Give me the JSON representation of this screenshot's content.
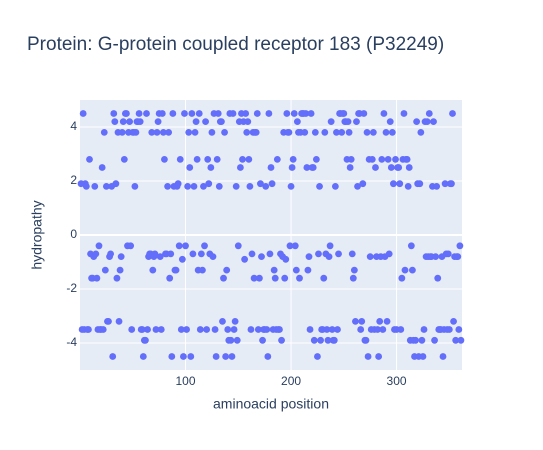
{
  "chart_data": {
    "type": "scatter",
    "title": "Protein: G-protein coupled receptor 183 (P32249)",
    "x_label": "aminoacid position",
    "y_label": "hydropathy",
    "color": "#636efa",
    "grid": true,
    "xlim": [
      0,
      362
    ],
    "ylim": [
      -5,
      5
    ],
    "xticks": [
      100,
      200,
      300
    ],
    "yticks": [
      -4,
      -2,
      0,
      2,
      4
    ],
    "x": [
      1,
      2,
      3,
      4,
      5,
      6,
      7,
      8,
      9,
      10,
      11,
      12,
      13,
      14,
      15,
      16,
      17,
      18,
      19,
      20,
      21,
      22,
      23,
      24,
      25,
      26,
      27,
      28,
      29,
      30,
      31,
      32,
      33,
      34,
      35,
      36,
      37,
      38,
      39,
      40,
      41,
      42,
      43,
      44,
      45,
      46,
      47,
      48,
      49,
      50,
      51,
      52,
      53,
      54,
      55,
      56,
      57,
      58,
      59,
      60,
      61,
      62,
      63,
      64,
      65,
      66,
      67,
      68,
      69,
      70,
      71,
      72,
      73,
      74,
      75,
      76,
      77,
      78,
      79,
      80,
      81,
      82,
      83,
      84,
      85,
      86,
      87,
      88,
      89,
      90,
      91,
      92,
      93,
      94,
      95,
      96,
      97,
      98,
      99,
      100,
      101,
      102,
      103,
      104,
      105,
      106,
      107,
      108,
      109,
      110,
      111,
      112,
      113,
      114,
      115,
      116,
      117,
      118,
      119,
      120,
      121,
      122,
      123,
      124,
      125,
      126,
      127,
      128,
      129,
      130,
      131,
      132,
      133,
      134,
      135,
      136,
      137,
      138,
      139,
      140,
      141,
      142,
      143,
      144,
      145,
      146,
      147,
      148,
      149,
      150,
      151,
      152,
      153,
      154,
      155,
      156,
      157,
      158,
      159,
      160,
      161,
      162,
      163,
      164,
      165,
      166,
      167,
      168,
      169,
      170,
      171,
      172,
      173,
      174,
      175,
      176,
      177,
      178,
      179,
      180,
      181,
      182,
      183,
      184,
      185,
      186,
      187,
      188,
      189,
      190,
      191,
      192,
      193,
      194,
      195,
      196,
      197,
      198,
      199,
      200,
      201,
      202,
      203,
      204,
      205,
      206,
      207,
      208,
      209,
      210,
      211,
      212,
      213,
      214,
      215,
      216,
      217,
      218,
      219,
      220,
      221,
      222,
      223,
      224,
      225,
      226,
      227,
      228,
      229,
      230,
      231,
      232,
      233,
      234,
      235,
      236,
      237,
      238,
      239,
      240,
      241,
      242,
      243,
      244,
      245,
      246,
      247,
      248,
      249,
      250,
      251,
      252,
      253,
      254,
      255,
      256,
      257,
      258,
      259,
      260,
      261,
      262,
      263,
      264,
      265,
      266,
      267,
      268,
      269,
      270,
      271,
      272,
      273,
      274,
      275,
      276,
      277,
      278,
      279,
      280,
      281,
      282,
      283,
      284,
      285,
      286,
      287,
      288,
      289,
      290,
      291,
      292,
      293,
      294,
      295,
      296,
      297,
      298,
      299,
      300,
      301,
      302,
      303,
      304,
      305,
      306,
      307,
      308,
      309,
      310,
      311,
      312,
      313,
      314,
      315,
      316,
      317,
      318,
      319,
      320,
      321,
      322,
      323,
      324,
      325,
      326,
      327,
      328,
      329,
      330,
      331,
      332,
      333,
      334,
      335,
      336,
      337,
      338,
      339,
      340,
      341,
      342,
      343,
      344,
      345,
      346,
      347,
      348,
      349,
      350,
      351,
      352,
      353,
      354,
      355,
      356,
      357,
      358,
      359,
      360,
      361
    ],
    "values": [
      1.9,
      -3.5,
      4.5,
      -3.5,
      1.9,
      1.8,
      -3.5,
      -3.5,
      2.8,
      -0.7,
      -1.6,
      -1.6,
      -0.8,
      1.8,
      -0.7,
      -1.6,
      -3.5,
      -0.4,
      -3.5,
      -3.5,
      2.5,
      -3.5,
      3.8,
      -1.3,
      1.8,
      -3.2,
      -3.2,
      -0.8,
      -0.7,
      1.8,
      -4.5,
      4.5,
      4.2,
      1.9,
      -1.6,
      3.8,
      -3.2,
      -1.3,
      -0.8,
      3.8,
      4.2,
      2.8,
      4.5,
      4.5,
      -0.4,
      3.8,
      4.2,
      -0.4,
      -3.5,
      3.8,
      3.8,
      1.8,
      3.8,
      4.2,
      4.2,
      4.5,
      4.2,
      -3.5,
      -3.5,
      -4.5,
      -3.9,
      -3.9,
      4.5,
      -3.5,
      -0.8,
      -0.7,
      -0.7,
      3.8,
      -1.3,
      -0.8,
      -0.7,
      -3.5,
      3.8,
      4.2,
      4.5,
      -0.8,
      -3.5,
      4.5,
      3.8,
      2.8,
      -0.7,
      -0.7,
      1.8,
      3.8,
      -1.6,
      -0.7,
      -4.5,
      4.5,
      1.8,
      -1.3,
      -1.3,
      1.8,
      1.9,
      -0.4,
      2.8,
      -3.5,
      -0.9,
      -4.5,
      4.5,
      -0.4,
      -3.5,
      1.8,
      3.8,
      2.5,
      -4.5,
      4.5,
      -0.7,
      1.8,
      3.8,
      4.2,
      2.8,
      -1.3,
      4.5,
      -3.5,
      -0.7,
      -1.3,
      1.8,
      -0.4,
      4.2,
      -3.5,
      2.8,
      1.9,
      -0.7,
      2.5,
      3.8,
      -0.8,
      4.5,
      -3.5,
      -4.5,
      2.8,
      4.5,
      1.8,
      4.2,
      4.2,
      -3.2,
      -1.6,
      3.8,
      -4.5,
      -1.3,
      -3.5,
      -3.9,
      4.5,
      -3.9,
      -4.5,
      4.5,
      -3.5,
      -3.2,
      1.8,
      -3.9,
      -0.4,
      4.2,
      2.5,
      4.5,
      2.8,
      4.2,
      -0.9,
      4.5,
      3.8,
      4.2,
      2.8,
      1.8,
      -3.5,
      -0.7,
      3.8,
      -1.6,
      3.8,
      3.8,
      4.5,
      -3.5,
      -1.6,
      1.9,
      -0.8,
      -3.9,
      -3.5,
      -3.5,
      1.8,
      -3.5,
      -4.5,
      4.5,
      -0.7,
      2.5,
      1.9,
      -3.5,
      -1.3,
      -1.6,
      -3.5,
      2.8,
      -3.5,
      -3.5,
      -0.7,
      -3.9,
      -0.8,
      3.8,
      -1.6,
      -0.9,
      4.5,
      3.8,
      3.8,
      -0.4,
      1.8,
      2.5,
      2.8,
      4.5,
      -0.4,
      -1.3,
      4.2,
      3.8,
      -1.6,
      3.8,
      4.5,
      4.5,
      4.5,
      3.8,
      4.5,
      2.5,
      -1.3,
      -0.8,
      -3.5,
      4.5,
      2.5,
      2.5,
      -3.9,
      3.8,
      2.8,
      -4.5,
      -0.7,
      1.8,
      -3.9,
      -3.5,
      -3.5,
      -1.6,
      3.8,
      -0.7,
      -3.5,
      -3.9,
      -0.8,
      -0.4,
      4.2,
      -3.5,
      -3.9,
      -3.9,
      1.8,
      3.8,
      -3.5,
      -0.7,
      4.5,
      4.5,
      3.8,
      4.5,
      4.5,
      4.2,
      4.2,
      2.8,
      4.2,
      3.8,
      2.5,
      2.8,
      -0.7,
      -1.6,
      -1.3,
      -3.2,
      4.2,
      1.8,
      4.5,
      4.5,
      -3.5,
      -3.2,
      1.9,
      4.5,
      -3.9,
      -3.9,
      3.8,
      -4.5,
      2.8,
      -0.8,
      -3.5,
      2.8,
      3.8,
      -3.5,
      2.5,
      -0.8,
      -3.5,
      -4.5,
      -3.2,
      -0.8,
      2.8,
      -3.5,
      4.5,
      -0.8,
      3.8,
      -3.2,
      2.8,
      -0.7,
      4.2,
      2.5,
      3.8,
      1.9,
      -3.5,
      2.8,
      -3.5,
      2.5,
      2.5,
      1.9,
      -3.5,
      -1.6,
      2.8,
      4.5,
      -1.3,
      2.8,
      2.8,
      1.8,
      2.5,
      -3.9,
      -0.4,
      -1.3,
      -3.9,
      -4.5,
      -3.9,
      4.2,
      1.9,
      -4.5,
      1.9,
      3.8,
      -3.9,
      -4.5,
      -3.5,
      4.2,
      -0.8,
      4.2,
      -0.8,
      4.5,
      -0.8,
      -0.8,
      1.8,
      4.2,
      -3.9,
      -0.8,
      1.8,
      -1.6,
      -3.5,
      -3.5,
      -3.5,
      -0.8,
      -4.5,
      -3.5,
      1.9,
      -0.7,
      -3.5,
      -0.7,
      -3.5,
      1.9,
      1.9,
      4.5,
      -3.2,
      -0.8,
      -3.9,
      -0.8,
      -0.8,
      -3.5,
      -0.4,
      -3.9
    ]
  }
}
